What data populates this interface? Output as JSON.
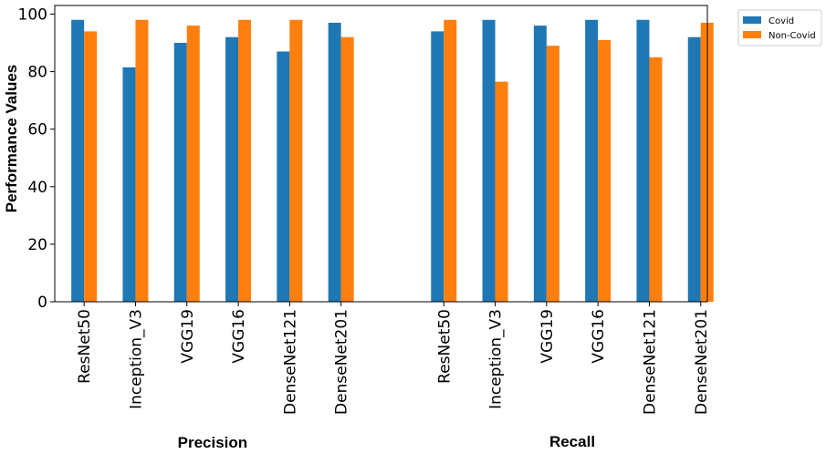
{
  "chart_data": {
    "type": "bar",
    "ylabel": "Performance Values",
    "ylim": [
      0,
      100
    ],
    "yticks": [
      0,
      20,
      40,
      60,
      80,
      100
    ],
    "grid": false,
    "legend_position": "outside-top-right",
    "groups": [
      {
        "label": "Precision",
        "categories": [
          "ResNet50",
          "Inception_V3",
          "VGG19",
          "VGG16",
          "DenseNet121",
          "DenseNet201"
        ],
        "series": [
          {
            "name": "Covid",
            "values": [
              98,
              81.5,
              90,
              92,
              87,
              97
            ]
          },
          {
            "name": "Non-Covid",
            "values": [
              94,
              98,
              96,
              98,
              98,
              92
            ]
          }
        ]
      },
      {
        "label": "Recall",
        "categories": [
          "ResNet50",
          "Inception_V3",
          "VGG19",
          "VGG16",
          "DenseNet121",
          "DenseNet201"
        ],
        "series": [
          {
            "name": "Covid",
            "values": [
              94,
              98,
              96,
              98,
              98,
              92
            ]
          },
          {
            "name": "Non-Covid",
            "values": [
              98,
              76.5,
              89,
              91,
              85,
              97
            ]
          }
        ]
      }
    ],
    "legend": [
      {
        "name": "Covid",
        "color": "#1f77b4"
      },
      {
        "name": "Non-Covid",
        "color": "#ff7f0e"
      }
    ]
  }
}
